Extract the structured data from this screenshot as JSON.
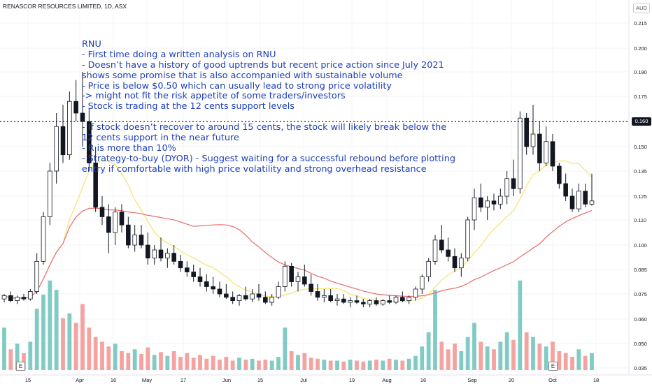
{
  "header": {
    "ticker": "RENASCOR RESOURCES LIMITED, 1D, ASX",
    "currency": "AUD"
  },
  "annotation": {
    "lines": [
      "RNU",
      "- First time doing a written analysis on RNU",
      "- Doesn’t have a history of good uptrends but recent price action since July 2021",
      "shows some promise that is also accompanied with sustainable volume",
      "- Price is below $0.50 which can usually lead to strong price volatility",
      "-> might not fit the risk appetite of some traders/investors",
      "- Stock is trading at the 12 cents support levels",
      "",
      "- If stock doesn’t recover to around 15 cents, the stock will likely break below the",
      "12 cents support in the near future",
      "- R is more than 10%",
      "- Strategy-to-buy (DYOR) - Suggest waiting for a successful rebound before plotting",
      "entry if comfortable with high price volatility and strong overhead resistance"
    ]
  },
  "chart_data": {
    "type": "candlestick",
    "title": "RENASCOR RESOURCES LIMITED, 1D, ASX",
    "currency": "AUD",
    "y_ticks": [
      "0.215",
      "0.200",
      "0.190",
      "0.175",
      "0.160",
      "0.150",
      "0.135",
      "0.125",
      "0.110",
      "0.100",
      "0.085",
      "0.075",
      "0.060",
      "0.050",
      "0.035"
    ],
    "x_ticks": [
      "15",
      "Apr",
      "16",
      "May",
      "17",
      "Jun",
      "15",
      "Jul",
      "19",
      "Aug",
      "16",
      "Sep",
      "20",
      "Oct",
      "18"
    ],
    "support_level": 0.16,
    "support_label": "0.160",
    "earnings_markers": [
      "E",
      "E"
    ],
    "colors": {
      "up": "#26a69a",
      "down": "#ef5350",
      "vol_up": "#80cbc4",
      "vol_down": "#f4a3a0",
      "ma_fast": "#f4e46e",
      "ma_slow": "#e86b6b",
      "text": "#1d3fbb",
      "support": "#131722"
    },
    "candles": [
      [
        0.072,
        0.075,
        0.07,
        0.074
      ],
      [
        0.074,
        0.076,
        0.07,
        0.071
      ],
      [
        0.071,
        0.074,
        0.069,
        0.073
      ],
      [
        0.073,
        0.075,
        0.071,
        0.072
      ],
      [
        0.072,
        0.077,
        0.071,
        0.076
      ],
      [
        0.076,
        0.095,
        0.075,
        0.09
      ],
      [
        0.09,
        0.115,
        0.088,
        0.112
      ],
      [
        0.112,
        0.14,
        0.108,
        0.135
      ],
      [
        0.135,
        0.165,
        0.13,
        0.158
      ],
      [
        0.158,
        0.17,
        0.14,
        0.145
      ],
      [
        0.145,
        0.178,
        0.142,
        0.172
      ],
      [
        0.172,
        0.185,
        0.16,
        0.165
      ],
      [
        0.165,
        0.19,
        0.15,
        0.16
      ],
      [
        0.16,
        0.168,
        0.135,
        0.14
      ],
      [
        0.14,
        0.15,
        0.115,
        0.118
      ],
      [
        0.118,
        0.125,
        0.108,
        0.112
      ],
      [
        0.112,
        0.12,
        0.095,
        0.105
      ],
      [
        0.105,
        0.118,
        0.1,
        0.115
      ],
      [
        0.115,
        0.12,
        0.105,
        0.108
      ],
      [
        0.108,
        0.112,
        0.098,
        0.1
      ],
      [
        0.1,
        0.108,
        0.096,
        0.104
      ],
      [
        0.104,
        0.108,
        0.098,
        0.1
      ],
      [
        0.1,
        0.105,
        0.088,
        0.092
      ],
      [
        0.092,
        0.1,
        0.088,
        0.097
      ],
      [
        0.097,
        0.103,
        0.09,
        0.092
      ],
      [
        0.092,
        0.098,
        0.086,
        0.095
      ],
      [
        0.095,
        0.1,
        0.088,
        0.09
      ],
      [
        0.09,
        0.094,
        0.084,
        0.086
      ],
      [
        0.086,
        0.09,
        0.082,
        0.084
      ],
      [
        0.084,
        0.088,
        0.08,
        0.082
      ],
      [
        0.082,
        0.086,
        0.078,
        0.08
      ],
      [
        0.08,
        0.083,
        0.076,
        0.078
      ],
      [
        0.078,
        0.082,
        0.075,
        0.077
      ],
      [
        0.077,
        0.08,
        0.073,
        0.075
      ],
      [
        0.075,
        0.079,
        0.072,
        0.073
      ],
      [
        0.073,
        0.076,
        0.069,
        0.071
      ],
      [
        0.071,
        0.075,
        0.068,
        0.074
      ],
      [
        0.074,
        0.078,
        0.071,
        0.072
      ],
      [
        0.072,
        0.077,
        0.07,
        0.075
      ],
      [
        0.075,
        0.079,
        0.071,
        0.073
      ],
      [
        0.073,
        0.076,
        0.069,
        0.07
      ],
      [
        0.07,
        0.075,
        0.068,
        0.073
      ],
      [
        0.073,
        0.08,
        0.072,
        0.078
      ],
      [
        0.078,
        0.09,
        0.076,
        0.087
      ],
      [
        0.087,
        0.089,
        0.078,
        0.08
      ],
      [
        0.08,
        0.084,
        0.076,
        0.082
      ],
      [
        0.082,
        0.088,
        0.078,
        0.079
      ],
      [
        0.079,
        0.083,
        0.074,
        0.076
      ],
      [
        0.076,
        0.079,
        0.071,
        0.073
      ],
      [
        0.073,
        0.077,
        0.07,
        0.074
      ],
      [
        0.074,
        0.077,
        0.07,
        0.071
      ],
      [
        0.071,
        0.075,
        0.068,
        0.072
      ],
      [
        0.072,
        0.075,
        0.069,
        0.07
      ],
      [
        0.07,
        0.073,
        0.067,
        0.071
      ],
      [
        0.071,
        0.074,
        0.069,
        0.07
      ],
      [
        0.07,
        0.072,
        0.067,
        0.069
      ],
      [
        0.069,
        0.072,
        0.067,
        0.071
      ],
      [
        0.071,
        0.073,
        0.068,
        0.069
      ],
      [
        0.069,
        0.072,
        0.068,
        0.071
      ],
      [
        0.071,
        0.074,
        0.069,
        0.07
      ],
      [
        0.07,
        0.074,
        0.069,
        0.073
      ],
      [
        0.073,
        0.076,
        0.07,
        0.071
      ],
      [
        0.071,
        0.074,
        0.069,
        0.073
      ],
      [
        0.073,
        0.078,
        0.071,
        0.077
      ],
      [
        0.077,
        0.083,
        0.075,
        0.082
      ],
      [
        0.082,
        0.092,
        0.08,
        0.09
      ],
      [
        0.09,
        0.104,
        0.088,
        0.102
      ],
      [
        0.102,
        0.108,
        0.095,
        0.097
      ],
      [
        0.097,
        0.103,
        0.09,
        0.093
      ],
      [
        0.093,
        0.098,
        0.084,
        0.086
      ],
      [
        0.086,
        0.095,
        0.082,
        0.092
      ],
      [
        0.092,
        0.112,
        0.09,
        0.11
      ],
      [
        0.11,
        0.128,
        0.106,
        0.124
      ],
      [
        0.124,
        0.13,
        0.115,
        0.118
      ],
      [
        0.118,
        0.125,
        0.11,
        0.122
      ],
      [
        0.122,
        0.126,
        0.116,
        0.12
      ],
      [
        0.12,
        0.128,
        0.117,
        0.125
      ],
      [
        0.125,
        0.135,
        0.12,
        0.132
      ],
      [
        0.132,
        0.142,
        0.125,
        0.128
      ],
      [
        0.128,
        0.166,
        0.126,
        0.162
      ],
      [
        0.162,
        0.165,
        0.145,
        0.15
      ],
      [
        0.15,
        0.17,
        0.145,
        0.155
      ],
      [
        0.155,
        0.16,
        0.135,
        0.14
      ],
      [
        0.14,
        0.158,
        0.138,
        0.152
      ],
      [
        0.152,
        0.155,
        0.135,
        0.138
      ],
      [
        0.138,
        0.14,
        0.128,
        0.13
      ],
      [
        0.13,
        0.134,
        0.122,
        0.125
      ],
      [
        0.125,
        0.128,
        0.115,
        0.117
      ],
      [
        0.117,
        0.13,
        0.115,
        0.127
      ],
      [
        0.127,
        0.13,
        0.118,
        0.12
      ],
      [
        0.12,
        0.134,
        0.119,
        0.122
      ]
    ],
    "volumes": [
      0.45,
      0.22,
      0.28,
      0.18,
      0.3,
      0.65,
      0.8,
      0.95,
      0.85,
      0.55,
      0.6,
      0.5,
      0.7,
      0.45,
      0.35,
      0.3,
      0.25,
      0.28,
      0.2,
      0.18,
      0.22,
      0.17,
      0.24,
      0.16,
      0.19,
      0.15,
      0.2,
      0.14,
      0.18,
      0.13,
      0.16,
      0.12,
      0.15,
      0.11,
      0.14,
      0.1,
      0.13,
      0.11,
      0.12,
      0.1,
      0.11,
      0.1,
      0.14,
      0.45,
      0.2,
      0.16,
      0.18,
      0.13,
      0.12,
      0.11,
      0.1,
      0.1,
      0.09,
      0.11,
      0.1,
      0.09,
      0.1,
      0.11,
      0.1,
      0.12,
      0.11,
      0.1,
      0.12,
      0.15,
      0.25,
      0.4,
      0.85,
      0.3,
      0.22,
      0.28,
      0.2,
      0.35,
      0.5,
      0.3,
      0.25,
      0.22,
      0.3,
      0.4,
      0.32,
      0.95,
      0.4,
      0.35,
      0.28,
      0.25,
      0.3,
      0.2,
      0.18,
      0.14,
      0.22,
      0.15,
      0.18
    ]
  }
}
